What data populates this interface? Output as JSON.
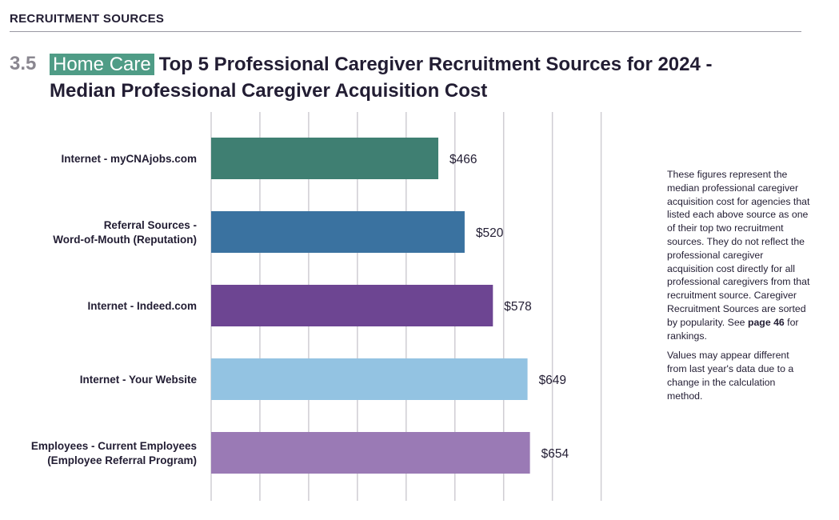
{
  "header": {
    "section": "RECRUITMENT SOURCES",
    "number": "3.5",
    "badge": "Home Care",
    "title": "Top 5 Professional Caregiver Recruitment Sources for 2024 - Median Professional Caregiver Acquisition Cost"
  },
  "note": {
    "p1_before": "These figures represent the median professional caregiver acquisition cost for agencies that listed each above source as one of their top two recruitment sources. They do not reflect the professional caregiver acquisition cost directly for all professional caregivers from that recruitment source. Caregiver Recruitment Sources are sorted by popularity. See ",
    "p1_bold": "page 46",
    "p1_after": " for rankings.",
    "p2": "Values may appear different from last year's data due to a change in the calculation method."
  },
  "chart_data": {
    "type": "bar",
    "orientation": "horizontal",
    "title": "Top 5 Professional Caregiver Recruitment Sources for 2024 - Median Professional Caregiver Acquisition Cost",
    "categories": [
      [
        "Internet - myCNAjobs.com"
      ],
      [
        "Referral Sources -",
        "Word-of-Mouth (Reputation)"
      ],
      [
        "Internet - Indeed.com"
      ],
      [
        "Internet - Your Website"
      ],
      [
        "Employees - Current Employees",
        "(Employee Referral Program)"
      ]
    ],
    "values": [
      466,
      520,
      578,
      649,
      654
    ],
    "value_labels": [
      "$466",
      "$520",
      "$578",
      "$649",
      "$654"
    ],
    "colors": [
      "#3f7f72",
      "#3a72a0",
      "#6d4592",
      "#93c3e2",
      "#9a7ab5"
    ],
    "xlim": [
      0,
      800
    ],
    "grid_step": 100,
    "grid": true,
    "xlabel": "",
    "ylabel": ""
  }
}
